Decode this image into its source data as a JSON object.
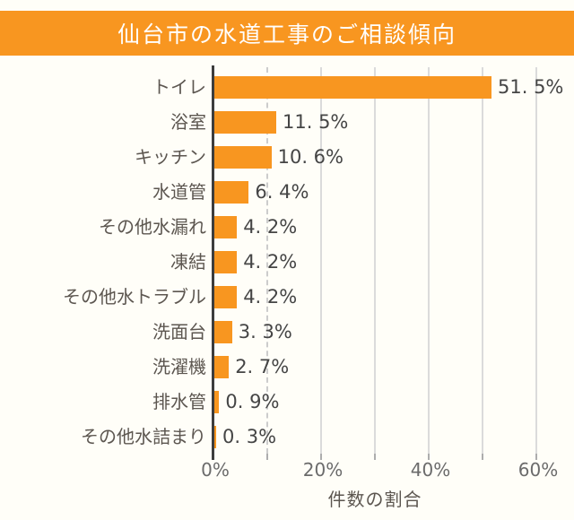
{
  "header": {
    "title": "仙台市の水道工事のご相談傾向"
  },
  "chart_data": {
    "type": "bar",
    "orientation": "horizontal",
    "title": "仙台市の水道工事のご相談傾向",
    "categories": [
      "トイレ",
      "浴室",
      "キッチン",
      "水道管",
      "その他水漏れ",
      "凍結",
      "その他水トラブル",
      "洗面台",
      "洗濯機",
      "排水管",
      "その他水詰まり"
    ],
    "values": [
      51.5,
      11.5,
      10.6,
      6.4,
      4.2,
      4.2,
      4.2,
      3.3,
      2.7,
      0.9,
      0.3
    ],
    "value_labels": [
      "51. 5%",
      "11. 5%",
      "10. 6%",
      "6. 4%",
      "4. 2%",
      "4. 2%",
      "4. 2%",
      "3. 3%",
      "2. 7%",
      "0. 9%",
      "0. 3%"
    ],
    "xlabel": "件数の割合",
    "ylabel": "",
    "xlim": [
      0,
      63.5
    ],
    "x_tick_values": [
      0,
      20,
      40,
      60
    ],
    "x_tick_labels": [
      "0%",
      "20%",
      "40%",
      "60%"
    ],
    "gridline_values": [
      10,
      20,
      30,
      40,
      50,
      60
    ],
    "dashed_gridline_values": [
      10
    ],
    "minor_tick_values": [
      0,
      10,
      20,
      30,
      40,
      50,
      60
    ],
    "grid": "vertical",
    "legend": "none"
  },
  "colors": {
    "accent_orange": "#F89620",
    "background": "#FFFEF8",
    "title_text": "#FFFFFF",
    "category_text": "#5C5650",
    "value_text": "#454545",
    "tick_text": "#6B6B6B",
    "gridline": "#DBDBDB",
    "axis_line": "#3D3D3D"
  }
}
